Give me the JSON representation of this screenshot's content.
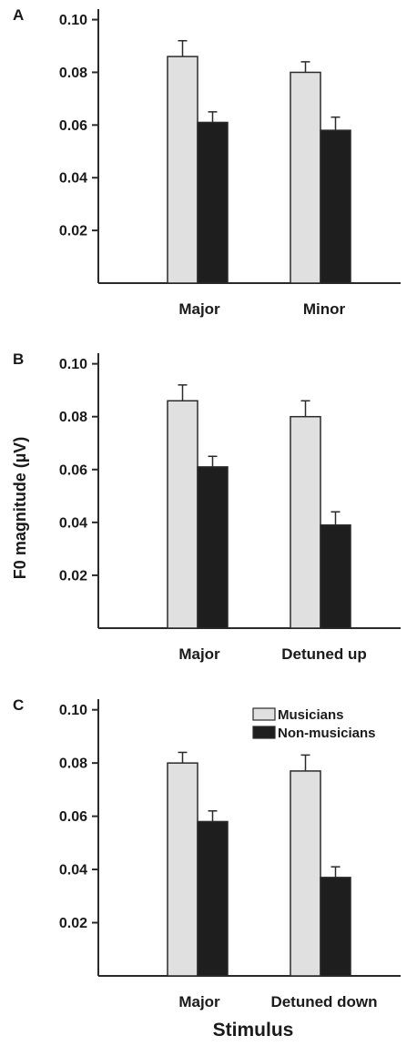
{
  "chart_data": [
    {
      "type": "bar",
      "panel": "A",
      "categories": [
        "Major",
        "Minor"
      ],
      "series": [
        {
          "name": "Musicians",
          "values": [
            0.086,
            0.08
          ],
          "errors": [
            0.006,
            0.004
          ]
        },
        {
          "name": "Non-musicians",
          "values": [
            0.061,
            0.058
          ],
          "errors": [
            0.004,
            0.005
          ]
        }
      ],
      "ylim": [
        0.0,
        0.104
      ],
      "yticks": [
        "0.02",
        "0.04",
        "0.06",
        "0.08",
        "0.10"
      ],
      "grid": false
    },
    {
      "type": "bar",
      "panel": "B",
      "categories": [
        "Major",
        "Detuned up"
      ],
      "series": [
        {
          "name": "Musicians",
          "values": [
            0.086,
            0.08
          ],
          "errors": [
            0.006,
            0.006
          ]
        },
        {
          "name": "Non-musicians",
          "values": [
            0.061,
            0.039
          ],
          "errors": [
            0.004,
            0.005
          ]
        }
      ],
      "ylim": [
        0.0,
        0.104
      ],
      "yticks": [
        "0.02",
        "0.04",
        "0.06",
        "0.08",
        "0.10"
      ],
      "grid": false
    },
    {
      "type": "bar",
      "panel": "C",
      "categories": [
        "Major",
        "Detuned down"
      ],
      "series": [
        {
          "name": "Musicians",
          "values": [
            0.08,
            0.077
          ],
          "errors": [
            0.004,
            0.006
          ]
        },
        {
          "name": "Non-musicians",
          "values": [
            0.058,
            0.037
          ],
          "errors": [
            0.004,
            0.004
          ]
        }
      ],
      "ylim": [
        0.0,
        0.104
      ],
      "yticks": [
        "0.02",
        "0.04",
        "0.06",
        "0.08",
        "0.10"
      ],
      "grid": false,
      "legend": {
        "placement": "top-right",
        "entries": [
          "Musicians",
          "Non-musicians"
        ]
      }
    }
  ],
  "ylabel": "F0 magnitude (µV)",
  "xlabel": "Stimulus",
  "colors": {
    "musicians": "#e0e0e0",
    "nonmusicians": "#1e1e1e",
    "axis": "#2a2a2a"
  }
}
